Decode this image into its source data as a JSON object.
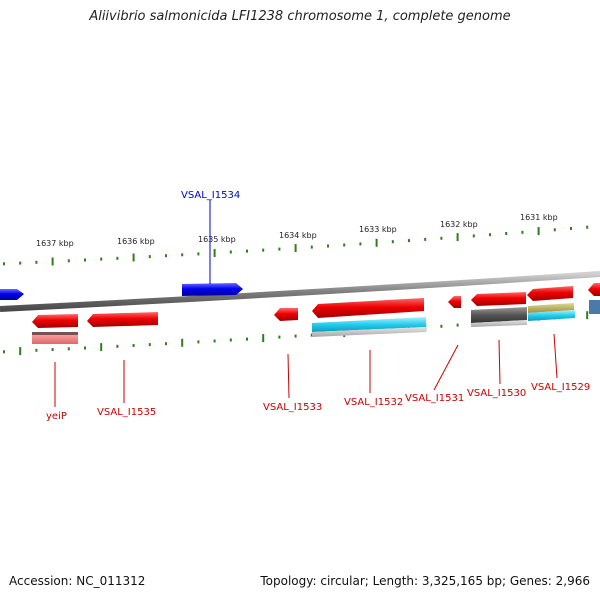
{
  "title": "Aliivibrio salmonicida LFI1238 chromosome 1, complete genome",
  "footer": {
    "accession": "Accession: NC_011312",
    "stats": "Topology: circular; Length: 3,325,165 bp; Genes: 2,966"
  },
  "ruler": {
    "ticks": [
      {
        "label": "1637 kbp"
      },
      {
        "label": "1636 kbp"
      },
      {
        "label": "1635 kbp"
      },
      {
        "label": "1634 kbp"
      },
      {
        "label": "1633 kbp"
      },
      {
        "label": "1632 kbp"
      },
      {
        "label": "1631 kbp"
      }
    ]
  },
  "gene_labels": {
    "top": [
      {
        "text": "VSAL_I1534",
        "color": "#0000cc"
      }
    ],
    "bottom": [
      {
        "text": "yeiP",
        "color": "#cc0000"
      },
      {
        "text": "VSAL_I1535",
        "color": "#cc0000"
      },
      {
        "text": "VSAL_I1533",
        "color": "#cc0000"
      },
      {
        "text": "VSAL_I1532",
        "color": "#cc0000"
      },
      {
        "text": "VSAL_I1531",
        "color": "#cc0000"
      },
      {
        "text": "VSAL_I1530",
        "color": "#cc0000"
      },
      {
        "text": "VSAL_I1529",
        "color": "#cc0000"
      }
    ]
  },
  "colors": {
    "forward_gene": "#0000ee",
    "reverse_gene": "#ee0000",
    "backbone": "#888888",
    "tick": "#2e7d1e",
    "feature_cyan": "#22ccee",
    "feature_gray": "#555555",
    "feature_pink": "#f08080",
    "feature_olive": "#b8b060"
  }
}
